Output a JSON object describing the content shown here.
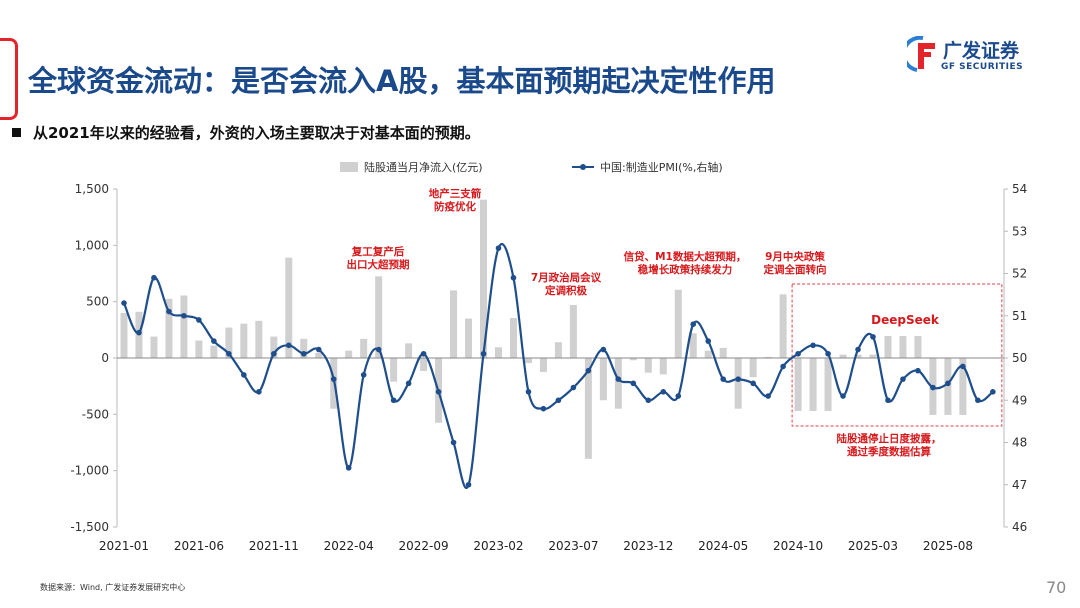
{
  "header": {
    "title": "全球资金流动：是否会流入A股，基本面预期起决定性作用",
    "subtitle": "从2021年以来的经验看，外资的入场主要取决于对基本面的预期。",
    "logo_cn": "广发证券",
    "logo_en": "GF SECURITIES",
    "accent": "#e3242b",
    "title_color": "#1b4a8c"
  },
  "footer": {
    "source": "数据来源：Wind, 广发证券发展研究中心",
    "page": "70"
  },
  "chart_data": {
    "type": "bar+line",
    "x": [
      "2021-01",
      "2021-02",
      "2021-03",
      "2021-04",
      "2021-05",
      "2021-06",
      "2021-07",
      "2021-08",
      "2021-09",
      "2021-10",
      "2021-11",
      "2021-12",
      "2022-01",
      "2022-02",
      "2022-03",
      "2022-04",
      "2022-05",
      "2022-06",
      "2022-07",
      "2022-08",
      "2022-09",
      "2022-10",
      "2022-11",
      "2022-12",
      "2023-01",
      "2023-02",
      "2023-03",
      "2023-04",
      "2023-05",
      "2023-06",
      "2023-07",
      "2023-08",
      "2023-09",
      "2023-10",
      "2023-11",
      "2023-12",
      "2024-01",
      "2024-02",
      "2024-03",
      "2024-04",
      "2024-05",
      "2024-06",
      "2024-07",
      "2024-08",
      "2024-09",
      "2024-10",
      "2024-11",
      "2024-12",
      "2025-01",
      "2025-02",
      "2025-03",
      "2025-04",
      "2025-05",
      "2025-06",
      "2025-07",
      "2025-08",
      "2025-09",
      "2025-10",
      "2025-11"
    ],
    "xticks": [
      "2021-01",
      "2021-06",
      "2021-11",
      "2022-04",
      "2022-09",
      "2023-02",
      "2023-07",
      "2023-12",
      "2024-05",
      "2024-10",
      "2025-03",
      "2025-08"
    ],
    "series": [
      {
        "name": "陆股通当月净流入(亿元)",
        "type": "bar",
        "axis": "left",
        "color": "#d0d0d0",
        "values": [
          400,
          410,
          190,
          525,
          555,
          155,
          110,
          270,
          305,
          330,
          190,
          890,
          170,
          45,
          -450,
          65,
          170,
          725,
          -210,
          130,
          -115,
          -575,
          600,
          350,
          1405,
          95,
          355,
          -45,
          -125,
          140,
          470,
          -895,
          -375,
          -450,
          -20,
          -130,
          -145,
          605,
          220,
          65,
          90,
          -450,
          -170,
          10,
          565,
          -470,
          -470,
          -470,
          30,
          30,
          30,
          195,
          195,
          195,
          -505,
          -505,
          -505,
          null,
          null
        ]
      },
      {
        "name": "中国:制造业PMI(%,右轴)",
        "type": "line",
        "axis": "right",
        "color": "#1f4e8c",
        "values": [
          51.3,
          50.6,
          51.9,
          51.1,
          51.0,
          50.9,
          50.4,
          50.1,
          49.6,
          49.2,
          50.1,
          50.3,
          50.1,
          50.2,
          49.5,
          47.4,
          49.6,
          50.2,
          49.0,
          49.4,
          50.1,
          49.2,
          48.0,
          47.0,
          50.1,
          52.6,
          51.9,
          49.2,
          48.8,
          49.0,
          49.3,
          49.7,
          50.2,
          49.5,
          49.4,
          49.0,
          49.2,
          49.1,
          50.8,
          50.4,
          49.5,
          49.5,
          49.4,
          49.1,
          49.8,
          50.1,
          50.3,
          50.1,
          49.1,
          50.2,
          50.5,
          49.0,
          49.5,
          49.7,
          49.3,
          49.4,
          49.8,
          49.0,
          49.2
        ]
      }
    ],
    "yleft": {
      "ylim": [
        -1500,
        1500
      ],
      "ticks": [
        "-1,500",
        "-1,000",
        "-500",
        "0",
        "500",
        "1,000",
        "1,500"
      ]
    },
    "yright": {
      "ylim": [
        46,
        54
      ],
      "ticks": [
        "46",
        "47",
        "48",
        "49",
        "50",
        "51",
        "52",
        "53",
        "54"
      ]
    },
    "legend": "top",
    "annotations": [
      {
        "lines": [
          "复工复产后",
          "出口大超预期"
        ],
        "at": "2022-06"
      },
      {
        "lines": [
          "地产三支箭",
          "防疫优化"
        ],
        "at": "2022-12"
      },
      {
        "lines": [
          "7月政治局会议",
          "定调积极"
        ],
        "at": "2023-07"
      },
      {
        "lines": [
          "信贷、M1数据大超预期，",
          "稳增长政策持续发力"
        ],
        "at": "2024-02"
      },
      {
        "lines": [
          "9月中央政策",
          "定调全面转向"
        ],
        "at": "2024-09"
      },
      {
        "lines": [
          "DeepSeek"
        ],
        "at": "2025-02"
      },
      {
        "lines": [
          "陆股通停止日度披露，",
          "通过季度数据估算"
        ],
        "at": "2025-02"
      }
    ],
    "annotation_color": "#d7191c",
    "highlight_box": {
      "from": "2024-10",
      "to": "2025-11",
      "style": "dashed"
    }
  }
}
